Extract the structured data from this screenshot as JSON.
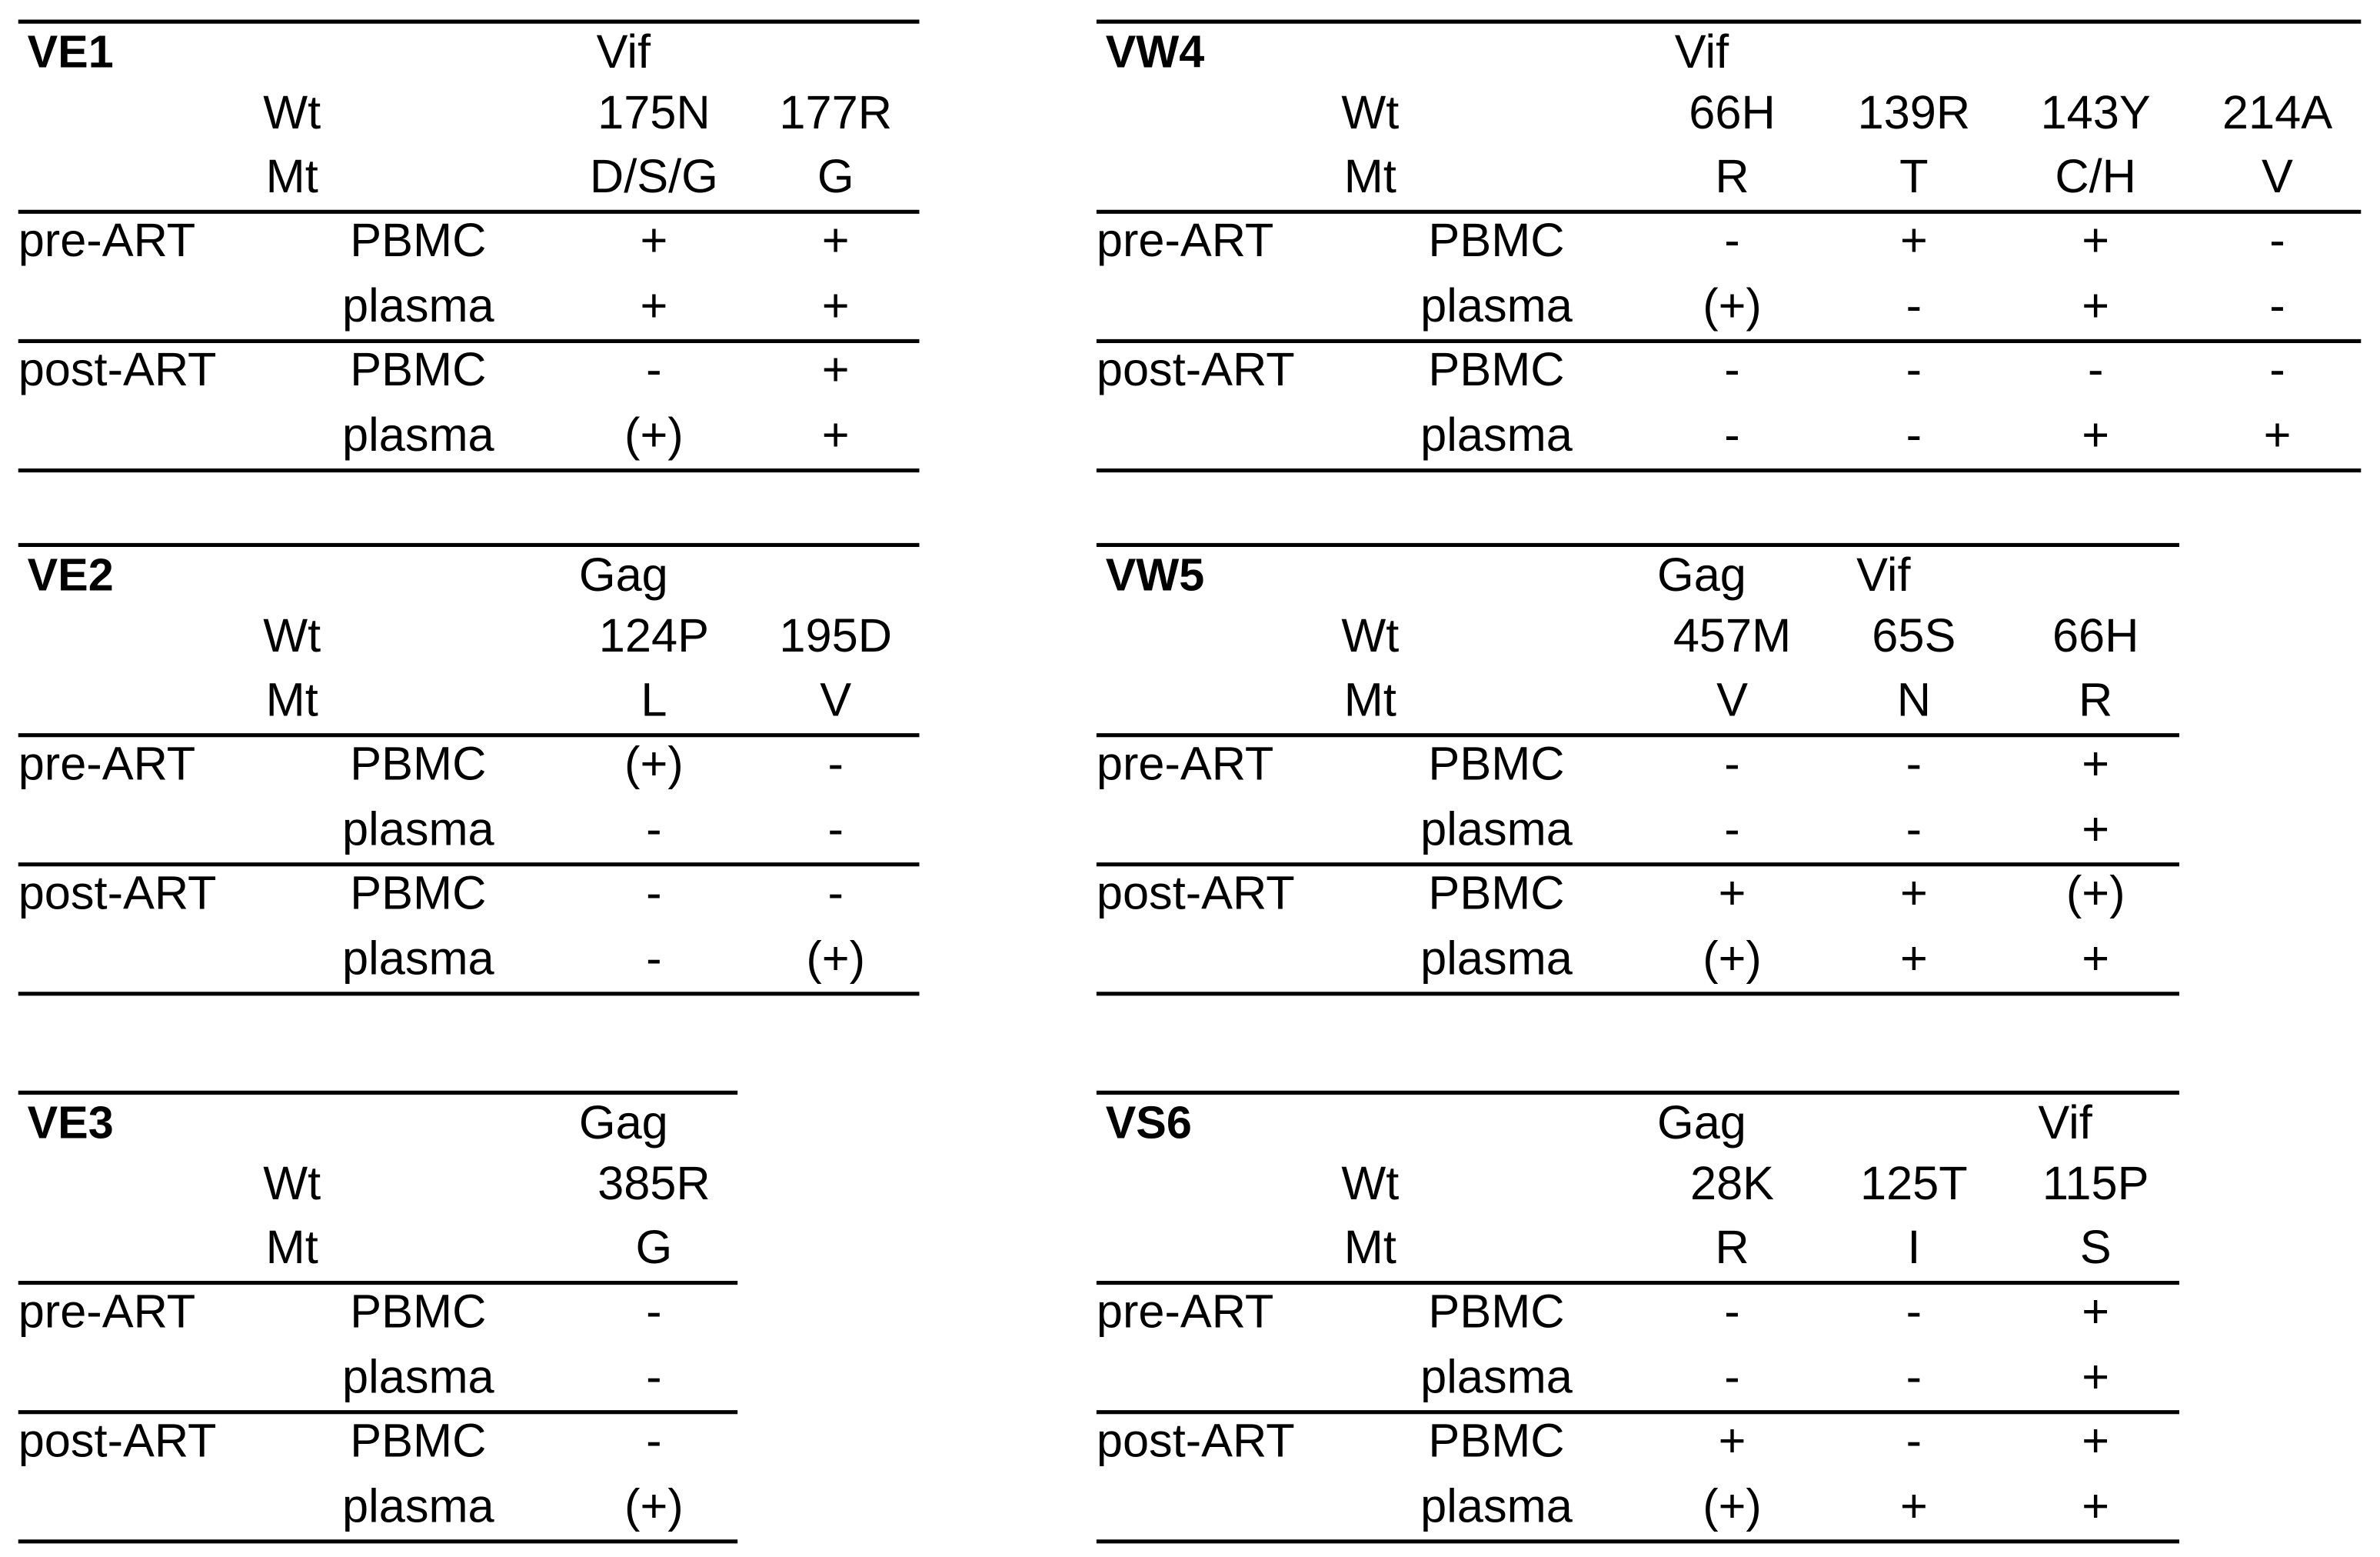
{
  "panels": [
    {
      "id": "VE1",
      "wt_label": "Wt",
      "mt_label": "Mt",
      "genes": [
        "Vif",
        null
      ],
      "wt": [
        "175N",
        "177R"
      ],
      "mt": [
        "D/S/G",
        "G"
      ],
      "groups": [
        {
          "period": "pre-ART",
          "rows": [
            {
              "sample": "PBMC",
              "values": [
                "+",
                "+"
              ]
            },
            {
              "sample": "plasma",
              "values": [
                "+",
                "+"
              ]
            }
          ]
        },
        {
          "period": "post-ART",
          "rows": [
            {
              "sample": "PBMC",
              "values": [
                "-",
                "+"
              ]
            },
            {
              "sample": "plasma",
              "values": [
                "(+)",
                "+"
              ]
            }
          ]
        }
      ]
    },
    {
      "id": "VW4",
      "wt_label": "Wt",
      "mt_label": "Mt",
      "genes": [
        "Vif",
        null,
        null,
        null
      ],
      "wt": [
        "66H",
        "139R",
        "143Y",
        "214A"
      ],
      "mt": [
        "R",
        "T",
        "C/H",
        "V"
      ],
      "groups": [
        {
          "period": "pre-ART",
          "rows": [
            {
              "sample": "PBMC",
              "values": [
                "-",
                "+",
                "+",
                "-"
              ]
            },
            {
              "sample": "plasma",
              "values": [
                "(+)",
                "-",
                "+",
                "-"
              ]
            }
          ]
        },
        {
          "period": "post-ART",
          "rows": [
            {
              "sample": "PBMC",
              "values": [
                "-",
                "-",
                "-",
                "-"
              ]
            },
            {
              "sample": "plasma",
              "values": [
                "-",
                "-",
                "+",
                "+"
              ]
            }
          ]
        }
      ]
    },
    {
      "id": "VE2",
      "wt_label": "Wt",
      "mt_label": "Mt",
      "genes": [
        "Gag",
        null
      ],
      "wt": [
        "124P",
        "195D"
      ],
      "mt": [
        "L",
        "V"
      ],
      "groups": [
        {
          "period": "pre-ART",
          "rows": [
            {
              "sample": "PBMC",
              "values": [
                "(+)",
                "-"
              ]
            },
            {
              "sample": "plasma",
              "values": [
                "-",
                "-"
              ]
            }
          ]
        },
        {
          "period": "post-ART",
          "rows": [
            {
              "sample": "PBMC",
              "values": [
                "-",
                "-"
              ]
            },
            {
              "sample": "plasma",
              "values": [
                "-",
                "(+)"
              ]
            }
          ]
        }
      ]
    },
    {
      "id": "VW5",
      "wt_label": "Wt",
      "mt_label": "Mt",
      "genes": [
        "Gag",
        "Vif",
        null
      ],
      "wt": [
        "457M",
        "65S",
        "66H"
      ],
      "mt": [
        "V",
        "N",
        "R"
      ],
      "groups": [
        {
          "period": "pre-ART",
          "rows": [
            {
              "sample": "PBMC",
              "values": [
                "-",
                "-",
                "+"
              ]
            },
            {
              "sample": "plasma",
              "values": [
                "-",
                "-",
                "+"
              ]
            }
          ]
        },
        {
          "period": "post-ART",
          "rows": [
            {
              "sample": "PBMC",
              "values": [
                "+",
                "+",
                "(+)"
              ]
            },
            {
              "sample": "plasma",
              "values": [
                "(+)",
                "+",
                "+"
              ]
            }
          ]
        }
      ]
    },
    {
      "id": "VE3",
      "wt_label": "Wt",
      "mt_label": "Mt",
      "genes": [
        "Gag"
      ],
      "wt": [
        "385R"
      ],
      "mt": [
        "G"
      ],
      "groups": [
        {
          "period": "pre-ART",
          "rows": [
            {
              "sample": "PBMC",
              "values": [
                "-"
              ]
            },
            {
              "sample": "plasma",
              "values": [
                "-"
              ]
            }
          ]
        },
        {
          "period": "post-ART",
          "rows": [
            {
              "sample": "PBMC",
              "values": [
                "-"
              ]
            },
            {
              "sample": "plasma",
              "values": [
                "(+)"
              ]
            }
          ]
        }
      ]
    },
    {
      "id": "VS6",
      "wt_label": "Wt",
      "mt_label": "Mt",
      "genes": [
        "Gag",
        null,
        "Vif"
      ],
      "wt": [
        "28K",
        "125T",
        "115P"
      ],
      "mt": [
        "R",
        "I",
        "S"
      ],
      "groups": [
        {
          "period": "pre-ART",
          "rows": [
            {
              "sample": "PBMC",
              "values": [
                "-",
                "-",
                "+"
              ]
            },
            {
              "sample": "plasma",
              "values": [
                "-",
                "-",
                "+"
              ]
            }
          ]
        },
        {
          "period": "post-ART",
          "rows": [
            {
              "sample": "PBMC",
              "values": [
                "+",
                "-",
                "+"
              ]
            },
            {
              "sample": "plasma",
              "values": [
                "(+)",
                "+",
                "+"
              ]
            }
          ]
        }
      ]
    }
  ]
}
